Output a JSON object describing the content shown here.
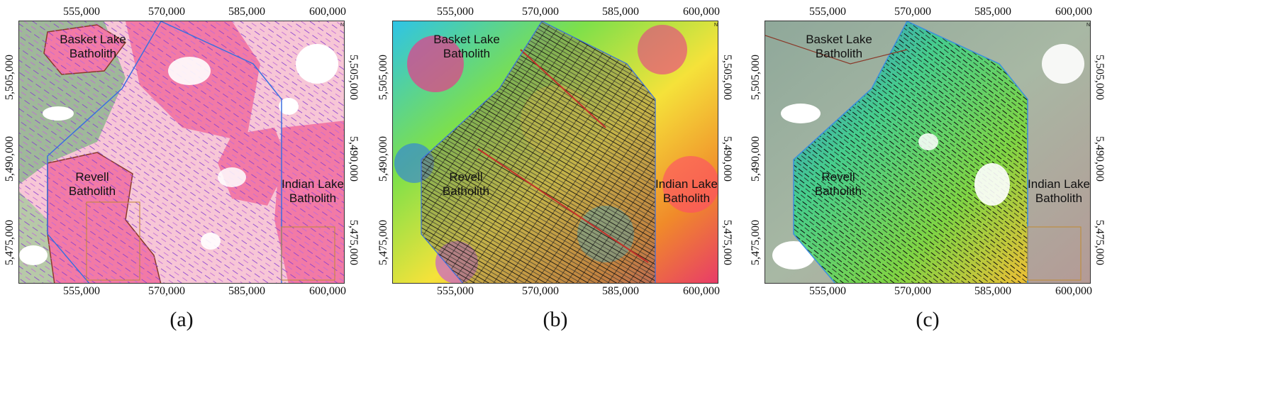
{
  "panels": [
    {
      "caption": "(a)",
      "style": "geology"
    },
    {
      "caption": "(b)",
      "style": "magnetics"
    },
    {
      "caption": "(c)",
      "style": "elevation"
    }
  ],
  "axes": {
    "x_ticks": [
      "555,000",
      "570,000",
      "585,000",
      "600,000"
    ],
    "y_ticks": [
      "5,505,000",
      "5,490,000",
      "5,475,000"
    ]
  },
  "labels": {
    "basket_lake": [
      "Basket Lake",
      "Batholith"
    ],
    "revell": [
      "Revell",
      "Batholith"
    ],
    "indian_lake": [
      "Indian Lake",
      "Batholith"
    ]
  },
  "north_symbol": "N",
  "colors": {
    "granite_pink": "#f27aa6",
    "light_pink": "#f7c6d6",
    "greenstone": "#9fb89a",
    "lineament_purple": "#8a3fd0",
    "boundary_blue": "#3b6fe0",
    "fault_brown": "#8a3a2a"
  }
}
